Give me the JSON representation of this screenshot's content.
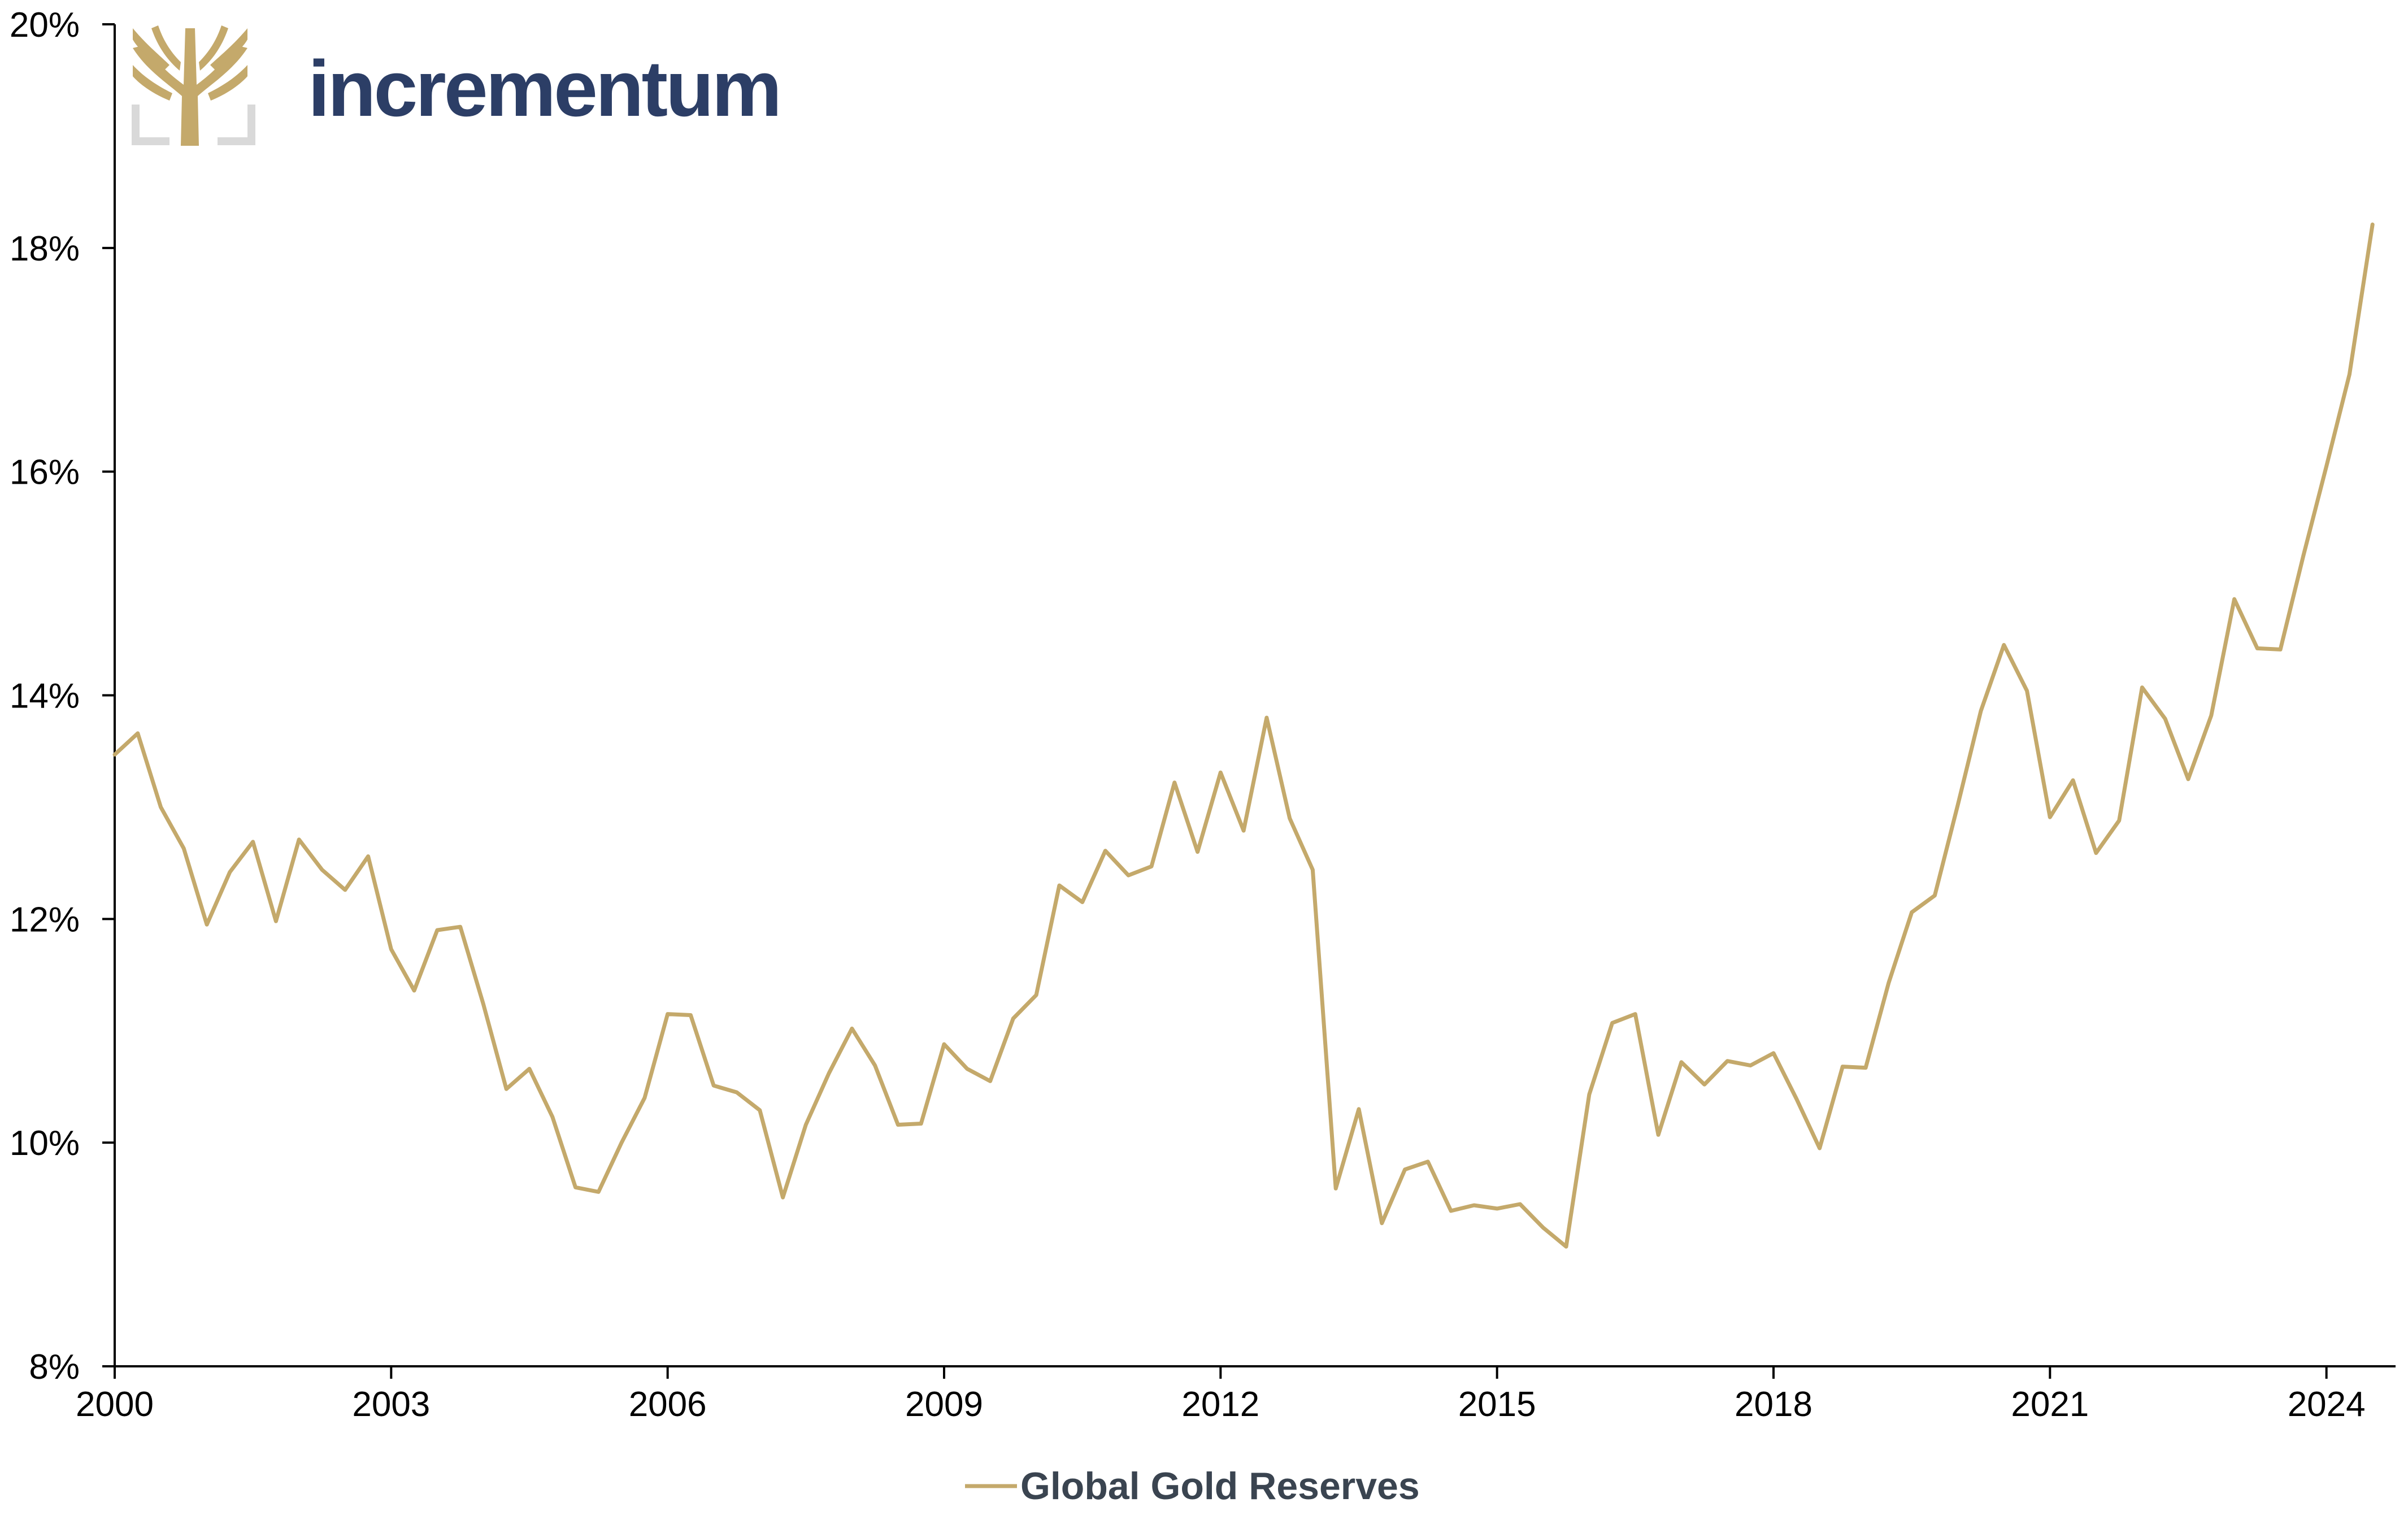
{
  "brand": {
    "name": "incrementum",
    "text_color": "#2c3e66",
    "emblem_color": "#c4a96b",
    "bracket_color": "#d9d9d9"
  },
  "chart_data": {
    "type": "line",
    "title": "",
    "xlabel": "",
    "ylabel": "",
    "xlim": [
      2000,
      2024.75
    ],
    "ylim": [
      8,
      20
    ],
    "x_ticks": [
      2000,
      2003,
      2006,
      2009,
      2012,
      2015,
      2018,
      2021,
      2024
    ],
    "x_tick_labels": [
      "2000",
      "2003",
      "2006",
      "2009",
      "2012",
      "2015",
      "2018",
      "2021",
      "2024"
    ],
    "y_ticks": [
      8,
      10,
      12,
      14,
      16,
      18,
      20
    ],
    "y_tick_labels": [
      "8%",
      "10%",
      "12%",
      "14%",
      "16%",
      "18%",
      "20%"
    ],
    "grid": false,
    "legend_position": "bottom-center",
    "series": [
      {
        "name": "Global Gold Reserves",
        "color": "#c4a96b",
        "x": [
          2000.0,
          2000.25,
          2000.5,
          2000.75,
          2001.0,
          2001.25,
          2001.5,
          2001.75,
          2002.0,
          2002.25,
          2002.5,
          2002.75,
          2003.0,
          2003.25,
          2003.5,
          2003.75,
          2004.0,
          2004.25,
          2004.5,
          2004.75,
          2005.0,
          2005.25,
          2005.5,
          2005.75,
          2006.0,
          2006.25,
          2006.5,
          2006.75,
          2007.0,
          2007.25,
          2007.5,
          2007.75,
          2008.0,
          2008.25,
          2008.5,
          2008.75,
          2009.0,
          2009.25,
          2009.5,
          2009.75,
          2010.0,
          2010.25,
          2010.5,
          2010.75,
          2011.0,
          2011.25,
          2011.5,
          2011.75,
          2012.0,
          2012.25,
          2012.5,
          2012.75,
          2013.0,
          2013.25,
          2013.5,
          2013.75,
          2014.0,
          2014.25,
          2014.5,
          2014.75,
          2015.0,
          2015.25,
          2015.5,
          2015.75,
          2016.0,
          2016.25,
          2016.5,
          2016.75,
          2017.0,
          2017.25,
          2017.5,
          2017.75,
          2018.0,
          2018.25,
          2018.5,
          2018.75,
          2019.0,
          2019.25,
          2019.5,
          2019.75,
          2020.0,
          2020.25,
          2020.5,
          2020.75,
          2021.0,
          2021.25,
          2021.5,
          2021.75,
          2022.0,
          2022.25,
          2022.5,
          2022.75,
          2023.0,
          2023.25,
          2023.5,
          2023.75,
          2024.0,
          2024.25,
          2024.5
        ],
        "values": [
          13.47,
          13.66,
          13.0,
          12.63,
          11.95,
          12.42,
          12.69,
          11.98,
          12.71,
          12.44,
          12.26,
          12.56,
          11.73,
          11.36,
          11.9,
          11.93,
          11.24,
          10.48,
          10.66,
          10.23,
          9.6,
          9.56,
          10.0,
          10.4,
          11.15,
          11.14,
          10.51,
          10.45,
          10.29,
          9.51,
          10.16,
          10.62,
          11.02,
          10.69,
          10.16,
          10.17,
          10.88,
          10.66,
          10.55,
          11.11,
          11.32,
          12.3,
          12.15,
          12.61,
          12.39,
          12.47,
          13.22,
          12.6,
          13.31,
          12.79,
          13.8,
          12.9,
          12.44,
          9.59,
          10.3,
          9.28,
          9.76,
          9.83,
          9.39,
          9.44,
          9.41,
          9.45,
          9.24,
          9.07,
          10.43,
          11.07,
          11.15,
          10.07,
          10.72,
          10.52,
          10.73,
          10.69,
          10.8,
          10.39,
          9.95,
          10.68,
          10.67,
          11.43,
          12.06,
          12.21,
          13.02,
          13.86,
          14.45,
          14.04,
          12.91,
          13.24,
          12.59,
          12.88,
          14.07,
          13.79,
          13.25,
          13.82,
          14.86,
          14.42,
          14.41,
          15.25,
          16.05,
          16.87,
          18.21
        ]
      }
    ]
  }
}
